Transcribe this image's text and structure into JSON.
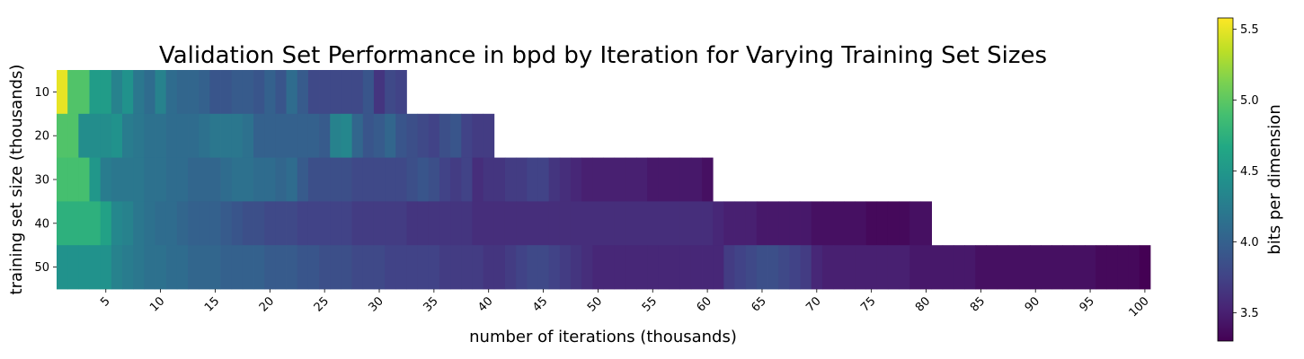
{
  "chart_data": {
    "type": "heatmap",
    "title": "Validation Set Performance in bpd by Iteration for Varying Training Set Sizes",
    "xlabel": "number of iterations (thousands)",
    "ylabel": "training set size (thousands)",
    "colorbar_label": "bits per dimension",
    "colormap": "viridis",
    "value_range": [
      3.3,
      5.58
    ],
    "x_range": [
      1,
      100
    ],
    "x_ticks": [
      "5",
      "10",
      "15",
      "20",
      "25",
      "30",
      "35",
      "40",
      "45",
      "50",
      "55",
      "60",
      "65",
      "70",
      "75",
      "80",
      "85",
      "90",
      "95",
      "100"
    ],
    "colorbar_ticks": [
      "3.5",
      "4.0",
      "4.5",
      "5.0",
      "5.5"
    ],
    "rows": [
      {
        "label": "10",
        "iterations": 32,
        "values": [
          5.5,
          4.95,
          4.95,
          4.55,
          4.55,
          4.3,
          4.45,
          4.2,
          4.1,
          4.3,
          4.1,
          4.05,
          4.05,
          4.0,
          3.9,
          3.9,
          3.95,
          3.95,
          3.9,
          4.0,
          3.9,
          4.1,
          3.95,
          3.8,
          3.8,
          3.8,
          3.8,
          3.8,
          3.9,
          3.65,
          3.8,
          3.75
        ]
      },
      {
        "label": "20",
        "iterations": 40,
        "values": [
          4.95,
          4.95,
          4.4,
          4.4,
          4.4,
          4.45,
          4.25,
          4.2,
          4.15,
          4.15,
          4.1,
          4.1,
          4.1,
          4.15,
          4.2,
          4.2,
          4.2,
          4.15,
          4.0,
          4.0,
          4.0,
          4.0,
          4.0,
          4.0,
          3.95,
          4.3,
          4.35,
          4.05,
          3.9,
          3.95,
          4.05,
          3.9,
          3.85,
          3.8,
          3.75,
          3.85,
          3.9,
          3.75,
          3.7,
          3.7
        ]
      },
      {
        "label": "30",
        "iterations": 60,
        "values": [
          4.9,
          4.9,
          4.9,
          4.5,
          4.25,
          4.2,
          4.2,
          4.2,
          4.15,
          4.15,
          4.1,
          4.1,
          4.05,
          4.05,
          4.05,
          4.1,
          4.15,
          4.15,
          4.1,
          4.1,
          4.05,
          4.1,
          3.95,
          3.85,
          3.85,
          3.85,
          3.85,
          3.8,
          3.8,
          3.8,
          3.8,
          3.8,
          3.85,
          3.9,
          3.85,
          3.75,
          3.7,
          3.75,
          3.6,
          3.65,
          3.65,
          3.7,
          3.7,
          3.75,
          3.75,
          3.65,
          3.6,
          3.55,
          3.5,
          3.5,
          3.5,
          3.5,
          3.5,
          3.5,
          3.45,
          3.45,
          3.45,
          3.45,
          3.45,
          3.4
        ]
      },
      {
        "label": "40",
        "iterations": 80,
        "values": [
          4.75,
          4.75,
          4.75,
          4.75,
          4.6,
          4.35,
          4.3,
          4.2,
          4.15,
          4.1,
          4.1,
          4.05,
          4.0,
          4.0,
          4.0,
          3.95,
          3.9,
          3.85,
          3.85,
          3.8,
          3.8,
          3.8,
          3.75,
          3.75,
          3.75,
          3.75,
          3.75,
          3.7,
          3.7,
          3.7,
          3.7,
          3.7,
          3.65,
          3.65,
          3.65,
          3.65,
          3.65,
          3.65,
          3.6,
          3.6,
          3.6,
          3.6,
          3.6,
          3.6,
          3.6,
          3.6,
          3.6,
          3.6,
          3.6,
          3.6,
          3.6,
          3.6,
          3.6,
          3.6,
          3.6,
          3.6,
          3.6,
          3.6,
          3.6,
          3.6,
          3.55,
          3.5,
          3.5,
          3.5,
          3.45,
          3.45,
          3.45,
          3.45,
          3.45,
          3.4,
          3.4,
          3.4,
          3.4,
          3.4,
          3.35,
          3.35,
          3.35,
          3.35,
          3.4,
          3.4
        ]
      },
      {
        "label": "50",
        "iterations": 100,
        "values": [
          4.45,
          4.45,
          4.45,
          4.45,
          4.45,
          4.3,
          4.25,
          4.2,
          4.15,
          4.15,
          4.1,
          4.1,
          4.05,
          4.05,
          4.05,
          4.0,
          4.0,
          4.0,
          4.0,
          3.95,
          3.95,
          3.95,
          3.9,
          3.9,
          3.85,
          3.85,
          3.85,
          3.8,
          3.8,
          3.8,
          3.75,
          3.75,
          3.75,
          3.75,
          3.75,
          3.7,
          3.7,
          3.7,
          3.7,
          3.65,
          3.65,
          3.7,
          3.75,
          3.8,
          3.8,
          3.75,
          3.7,
          3.65,
          3.6,
          3.55,
          3.55,
          3.55,
          3.55,
          3.55,
          3.55,
          3.55,
          3.55,
          3.55,
          3.55,
          3.55,
          3.55,
          3.7,
          3.75,
          3.8,
          3.85,
          3.85,
          3.8,
          3.75,
          3.7,
          3.55,
          3.5,
          3.5,
          3.5,
          3.5,
          3.5,
          3.5,
          3.5,
          3.5,
          3.45,
          3.45,
          3.45,
          3.45,
          3.45,
          3.45,
          3.4,
          3.4,
          3.4,
          3.4,
          3.4,
          3.4,
          3.4,
          3.4,
          3.4,
          3.4,
          3.4,
          3.35,
          3.35,
          3.35,
          3.35,
          3.3
        ]
      }
    ]
  }
}
